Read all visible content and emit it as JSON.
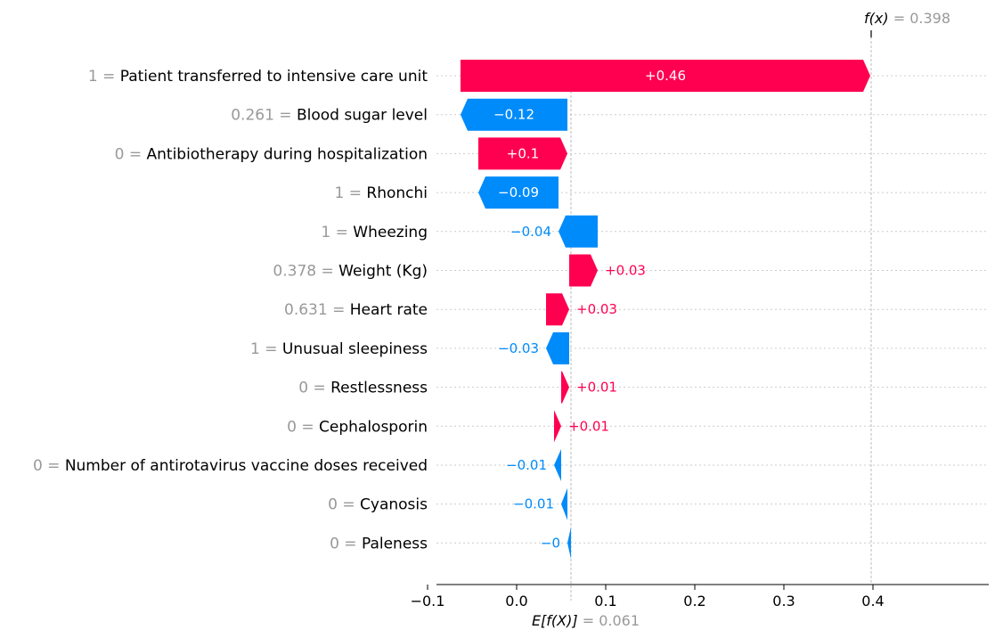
{
  "chart_data": {
    "type": "waterfall",
    "base_value": 0.061,
    "base_value_text": "0.061",
    "base_label": "E[f(X)]",
    "output_value": 0.398,
    "output_value_text": "0.398",
    "output_label": "f(x)",
    "xlim": [
      -0.135,
      0.475
    ],
    "xticks": [
      -0.1,
      0.0,
      0.1,
      0.2,
      0.3,
      0.4
    ],
    "xtick_labels": [
      "−0.1",
      "0.0",
      "0.1",
      "0.2",
      "0.3",
      "0.4"
    ],
    "colors": {
      "positive": "#ff0051",
      "negative": "#008bfb"
    },
    "features": [
      {
        "value": "1",
        "name": "Patient transferred to intensive care unit",
        "contribution": 0.46,
        "label": "+0.46"
      },
      {
        "value": "0.261",
        "name": "Blood sugar level",
        "contribution": -0.12,
        "label": "−0.12"
      },
      {
        "value": "0",
        "name": "Antibiotherapy during hospitalization",
        "contribution": 0.1,
        "label": "+0.1"
      },
      {
        "value": "1",
        "name": "Rhonchi",
        "contribution": -0.09,
        "label": "−0.09"
      },
      {
        "value": "1",
        "name": "Wheezing",
        "contribution": -0.044,
        "label": "−0.04"
      },
      {
        "value": "0.378",
        "name": "Weight (Kg)",
        "contribution": 0.032,
        "label": "+0.03"
      },
      {
        "value": "0.631",
        "name": "Heart rate",
        "contribution": 0.026,
        "label": "+0.03"
      },
      {
        "value": "1",
        "name": "Unusual sleepiness",
        "contribution": -0.026,
        "label": "−0.03"
      },
      {
        "value": "0",
        "name": "Restlessness",
        "contribution": 0.009,
        "label": "+0.01"
      },
      {
        "value": "0",
        "name": "Cephalosporin",
        "contribution": 0.008,
        "label": "+0.01"
      },
      {
        "value": "0",
        "name": "Number of antirotavirus vaccine doses received",
        "contribution": -0.008,
        "label": "−0.01"
      },
      {
        "value": "0",
        "name": "Cyanosis",
        "contribution": -0.007,
        "label": "−0.01"
      },
      {
        "value": "0",
        "name": "Paleness",
        "contribution": -0.004,
        "label": "−0"
      }
    ]
  }
}
